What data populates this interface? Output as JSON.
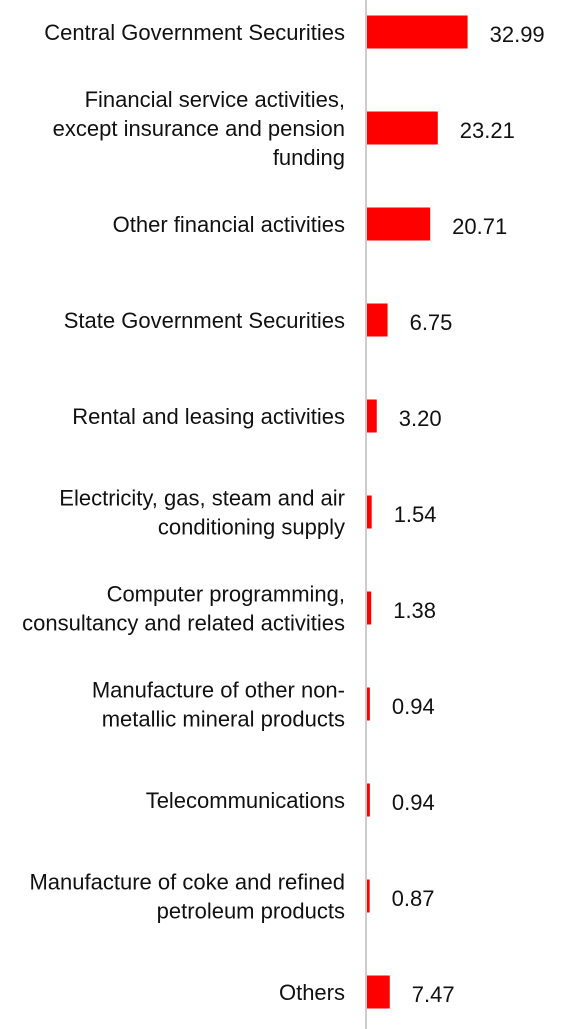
{
  "chart_data": {
    "type": "bar",
    "orientation": "horizontal",
    "categories": [
      "Central Government Securities",
      "Financial service activities, except insurance and pension funding",
      "Other financial activities",
      "State Government Securities",
      "Rental and leasing activities",
      "Electricity, gas, steam and air conditioning supply",
      "Computer programming, consultancy and related activities",
      "Manufacture of other non-metallic mineral products",
      "Telecommunications",
      "Manufacture of coke and refined petroleum products",
      "Others"
    ],
    "category_lines": [
      [
        "Central Government Securities"
      ],
      [
        "Financial service activities,",
        "except insurance and pension",
        "funding"
      ],
      [
        "Other financial activities"
      ],
      [
        "State Government Securities"
      ],
      [
        "Rental and leasing activities"
      ],
      [
        "Electricity, gas, steam and air",
        "conditioning supply"
      ],
      [
        "Computer programming,",
        "consultancy and related activities"
      ],
      [
        "Manufacture of other non-",
        "metallic mineral products"
      ],
      [
        "Telecommunications"
      ],
      [
        "Manufacture of coke and refined",
        "petroleum products"
      ],
      [
        "Others"
      ]
    ],
    "values": [
      32.99,
      23.21,
      20.71,
      6.75,
      3.2,
      1.54,
      1.38,
      0.94,
      0.94,
      0.87,
      7.47
    ],
    "value_labels": [
      "32.99",
      "23.21",
      "20.71",
      "6.75",
      "3.20",
      "1.54",
      "1.38",
      "0.94",
      "0.94",
      "0.87",
      "7.47"
    ],
    "bar_color": "#ff0000",
    "axis_color": "#cccccc",
    "grid": false,
    "legend": "none"
  }
}
